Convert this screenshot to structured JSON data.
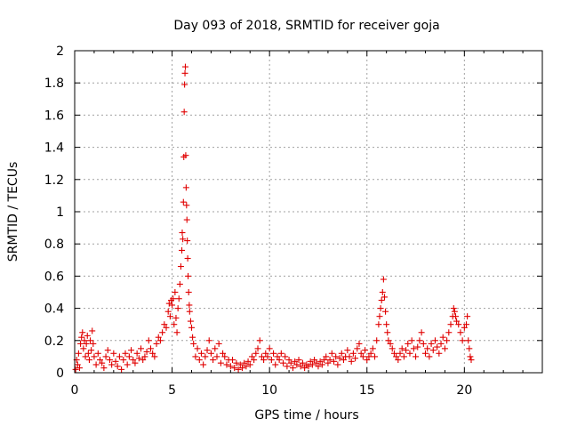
{
  "chart_data": {
    "type": "scatter",
    "title": "Day 093 of 2018, SRMTID for receiver goja",
    "xlabel": "GPS time / hours",
    "ylabel": "SRMTID / TECUs",
    "xlim": [
      0,
      24
    ],
    "ylim": [
      0,
      2
    ],
    "xticks": [
      0,
      5,
      10,
      15,
      20
    ],
    "yticks": [
      0,
      0.2,
      0.4,
      0.6,
      0.8,
      1,
      1.2,
      1.4,
      1.6,
      1.8,
      2
    ],
    "xtick_labels": [
      "0",
      "5",
      "10",
      "15",
      "20"
    ],
    "ytick_labels": [
      "0",
      "0.2",
      "0.4",
      "0.6",
      "0.8",
      "1",
      "1.2",
      "1.4",
      "1.6",
      "1.8",
      "2"
    ],
    "grid": true,
    "marker": "+",
    "color": "#e00000",
    "series": [
      {
        "name": "SRMTID",
        "points": [
          [
            0.05,
            0.02
          ],
          [
            0.1,
            0.08
          ],
          [
            0.15,
            0.05
          ],
          [
            0.2,
            0.12
          ],
          [
            0.25,
            0.03
          ],
          [
            0.3,
            0.18
          ],
          [
            0.35,
            0.22
          ],
          [
            0.4,
            0.25
          ],
          [
            0.45,
            0.15
          ],
          [
            0.5,
            0.2
          ],
          [
            0.55,
            0.1
          ],
          [
            0.6,
            0.18
          ],
          [
            0.65,
            0.23
          ],
          [
            0.7,
            0.12
          ],
          [
            0.75,
            0.08
          ],
          [
            0.8,
            0.2
          ],
          [
            0.85,
            0.14
          ],
          [
            0.9,
            0.26
          ],
          [
            0.95,
            0.18
          ],
          [
            1.0,
            0.1
          ],
          [
            1.1,
            0.05
          ],
          [
            1.2,
            0.12
          ],
          [
            1.3,
            0.08
          ],
          [
            1.4,
            0.06
          ],
          [
            1.5,
            0.03
          ],
          [
            1.6,
            0.1
          ],
          [
            1.7,
            0.14
          ],
          [
            1.8,
            0.08
          ],
          [
            1.9,
            0.05
          ],
          [
            2.0,
            0.12
          ],
          [
            2.1,
            0.07
          ],
          [
            2.2,
            0.04
          ],
          [
            2.3,
            0.1
          ],
          [
            2.4,
            0.02
          ],
          [
            2.5,
            0.08
          ],
          [
            2.6,
            0.12
          ],
          [
            2.7,
            0.05
          ],
          [
            2.8,
            0.1
          ],
          [
            2.9,
            0.14
          ],
          [
            3.0,
            0.08
          ],
          [
            3.1,
            0.06
          ],
          [
            3.2,
            0.12
          ],
          [
            3.3,
            0.09
          ],
          [
            3.4,
            0.15
          ],
          [
            3.5,
            0.08
          ],
          [
            3.6,
            0.1
          ],
          [
            3.7,
            0.13
          ],
          [
            3.8,
            0.2
          ],
          [
            3.9,
            0.15
          ],
          [
            4.0,
            0.12
          ],
          [
            4.1,
            0.1
          ],
          [
            4.2,
            0.18
          ],
          [
            4.3,
            0.22
          ],
          [
            4.4,
            0.2
          ],
          [
            4.5,
            0.25
          ],
          [
            4.6,
            0.3
          ],
          [
            4.7,
            0.28
          ],
          [
            4.8,
            0.38
          ],
          [
            4.85,
            0.43
          ],
          [
            4.9,
            0.35
          ],
          [
            4.95,
            0.45
          ],
          [
            5.0,
            0.42
          ],
          [
            5.05,
            0.46
          ],
          [
            5.1,
            0.3
          ],
          [
            5.15,
            0.5
          ],
          [
            5.2,
            0.34
          ],
          [
            5.25,
            0.25
          ],
          [
            5.3,
            0.4
          ],
          [
            5.35,
            0.46
          ],
          [
            5.4,
            0.55
          ],
          [
            5.45,
            0.66
          ],
          [
            5.5,
            0.76
          ],
          [
            5.52,
            0.87
          ],
          [
            5.55,
            0.83
          ],
          [
            5.58,
            1.06
          ],
          [
            5.6,
            1.34
          ],
          [
            5.62,
            1.62
          ],
          [
            5.64,
            1.79
          ],
          [
            5.66,
            1.86
          ],
          [
            5.68,
            1.9
          ],
          [
            5.7,
            1.35
          ],
          [
            5.72,
            1.15
          ],
          [
            5.74,
            1.04
          ],
          [
            5.76,
            0.95
          ],
          [
            5.78,
            0.82
          ],
          [
            5.8,
            0.71
          ],
          [
            5.82,
            0.6
          ],
          [
            5.85,
            0.5
          ],
          [
            5.88,
            0.42
          ],
          [
            5.9,
            0.38
          ],
          [
            5.95,
            0.32
          ],
          [
            6.0,
            0.28
          ],
          [
            6.05,
            0.22
          ],
          [
            6.1,
            0.18
          ],
          [
            6.2,
            0.1
          ],
          [
            6.3,
            0.15
          ],
          [
            6.4,
            0.08
          ],
          [
            6.5,
            0.12
          ],
          [
            6.6,
            0.05
          ],
          [
            6.7,
            0.1
          ],
          [
            6.8,
            0.14
          ],
          [
            6.9,
            0.2
          ],
          [
            7.0,
            0.12
          ],
          [
            7.1,
            0.08
          ],
          [
            7.2,
            0.15
          ],
          [
            7.3,
            0.1
          ],
          [
            7.4,
            0.18
          ],
          [
            7.5,
            0.06
          ],
          [
            7.6,
            0.12
          ],
          [
            7.7,
            0.1
          ],
          [
            7.8,
            0.05
          ],
          [
            7.9,
            0.08
          ],
          [
            8.0,
            0.04
          ],
          [
            8.1,
            0.08
          ],
          [
            8.2,
            0.03
          ],
          [
            8.3,
            0.06
          ],
          [
            8.4,
            0.02
          ],
          [
            8.5,
            0.05
          ],
          [
            8.6,
            0.03
          ],
          [
            8.7,
            0.06
          ],
          [
            8.8,
            0.04
          ],
          [
            8.9,
            0.07
          ],
          [
            9.0,
            0.05
          ],
          [
            9.1,
            0.1
          ],
          [
            9.2,
            0.08
          ],
          [
            9.3,
            0.12
          ],
          [
            9.4,
            0.15
          ],
          [
            9.5,
            0.2
          ],
          [
            9.6,
            0.1
          ],
          [
            9.7,
            0.08
          ],
          [
            9.8,
            0.12
          ],
          [
            9.9,
            0.1
          ],
          [
            10.0,
            0.15
          ],
          [
            10.1,
            0.08
          ],
          [
            10.2,
            0.12
          ],
          [
            10.3,
            0.05
          ],
          [
            10.4,
            0.1
          ],
          [
            10.5,
            0.08
          ],
          [
            10.6,
            0.12
          ],
          [
            10.7,
            0.06
          ],
          [
            10.8,
            0.1
          ],
          [
            10.9,
            0.04
          ],
          [
            11.0,
            0.08
          ],
          [
            11.1,
            0.06
          ],
          [
            11.2,
            0.03
          ],
          [
            11.3,
            0.07
          ],
          [
            11.4,
            0.05
          ],
          [
            11.5,
            0.08
          ],
          [
            11.6,
            0.04
          ],
          [
            11.7,
            0.06
          ],
          [
            11.8,
            0.03
          ],
          [
            11.9,
            0.05
          ],
          [
            12.0,
            0.04
          ],
          [
            12.1,
            0.07
          ],
          [
            12.2,
            0.05
          ],
          [
            12.3,
            0.08
          ],
          [
            12.4,
            0.06
          ],
          [
            12.5,
            0.04
          ],
          [
            12.6,
            0.07
          ],
          [
            12.7,
            0.05
          ],
          [
            12.8,
            0.08
          ],
          [
            12.9,
            0.1
          ],
          [
            13.0,
            0.06
          ],
          [
            13.1,
            0.08
          ],
          [
            13.2,
            0.12
          ],
          [
            13.3,
            0.07
          ],
          [
            13.4,
            0.1
          ],
          [
            13.5,
            0.05
          ],
          [
            13.6,
            0.09
          ],
          [
            13.7,
            0.12
          ],
          [
            13.8,
            0.08
          ],
          [
            13.9,
            0.1
          ],
          [
            14.0,
            0.14
          ],
          [
            14.1,
            0.1
          ],
          [
            14.2,
            0.07
          ],
          [
            14.3,
            0.12
          ],
          [
            14.4,
            0.09
          ],
          [
            14.5,
            0.15
          ],
          [
            14.6,
            0.18
          ],
          [
            14.7,
            0.12
          ],
          [
            14.8,
            0.1
          ],
          [
            14.9,
            0.14
          ],
          [
            15.0,
            0.08
          ],
          [
            15.1,
            0.1
          ],
          [
            15.2,
            0.12
          ],
          [
            15.3,
            0.15
          ],
          [
            15.4,
            0.1
          ],
          [
            15.5,
            0.2
          ],
          [
            15.6,
            0.3
          ],
          [
            15.65,
            0.35
          ],
          [
            15.7,
            0.4
          ],
          [
            15.75,
            0.45
          ],
          [
            15.8,
            0.5
          ],
          [
            15.85,
            0.58
          ],
          [
            15.9,
            0.47
          ],
          [
            15.95,
            0.38
          ],
          [
            16.0,
            0.3
          ],
          [
            16.05,
            0.25
          ],
          [
            16.1,
            0.2
          ],
          [
            16.2,
            0.18
          ],
          [
            16.3,
            0.15
          ],
          [
            16.4,
            0.12
          ],
          [
            16.5,
            0.1
          ],
          [
            16.6,
            0.08
          ],
          [
            16.7,
            0.12
          ],
          [
            16.8,
            0.15
          ],
          [
            16.9,
            0.1
          ],
          [
            17.0,
            0.14
          ],
          [
            17.1,
            0.18
          ],
          [
            17.2,
            0.12
          ],
          [
            17.3,
            0.2
          ],
          [
            17.4,
            0.15
          ],
          [
            17.5,
            0.1
          ],
          [
            17.6,
            0.16
          ],
          [
            17.7,
            0.2
          ],
          [
            17.8,
            0.25
          ],
          [
            17.9,
            0.18
          ],
          [
            18.0,
            0.12
          ],
          [
            18.1,
            0.15
          ],
          [
            18.2,
            0.1
          ],
          [
            18.3,
            0.18
          ],
          [
            18.4,
            0.14
          ],
          [
            18.5,
            0.2
          ],
          [
            18.6,
            0.16
          ],
          [
            18.7,
            0.12
          ],
          [
            18.8,
            0.18
          ],
          [
            18.9,
            0.22
          ],
          [
            19.0,
            0.15
          ],
          [
            19.1,
            0.2
          ],
          [
            19.2,
            0.25
          ],
          [
            19.3,
            0.3
          ],
          [
            19.4,
            0.35
          ],
          [
            19.45,
            0.4
          ],
          [
            19.5,
            0.38
          ],
          [
            19.55,
            0.35
          ],
          [
            19.6,
            0.32
          ],
          [
            19.7,
            0.3
          ],
          [
            19.8,
            0.25
          ],
          [
            19.9,
            0.2
          ],
          [
            20.0,
            0.28
          ],
          [
            20.1,
            0.3
          ],
          [
            20.15,
            0.35
          ],
          [
            20.2,
            0.2
          ],
          [
            20.25,
            0.15
          ],
          [
            20.3,
            0.1
          ],
          [
            20.35,
            0.08
          ]
        ]
      }
    ]
  }
}
